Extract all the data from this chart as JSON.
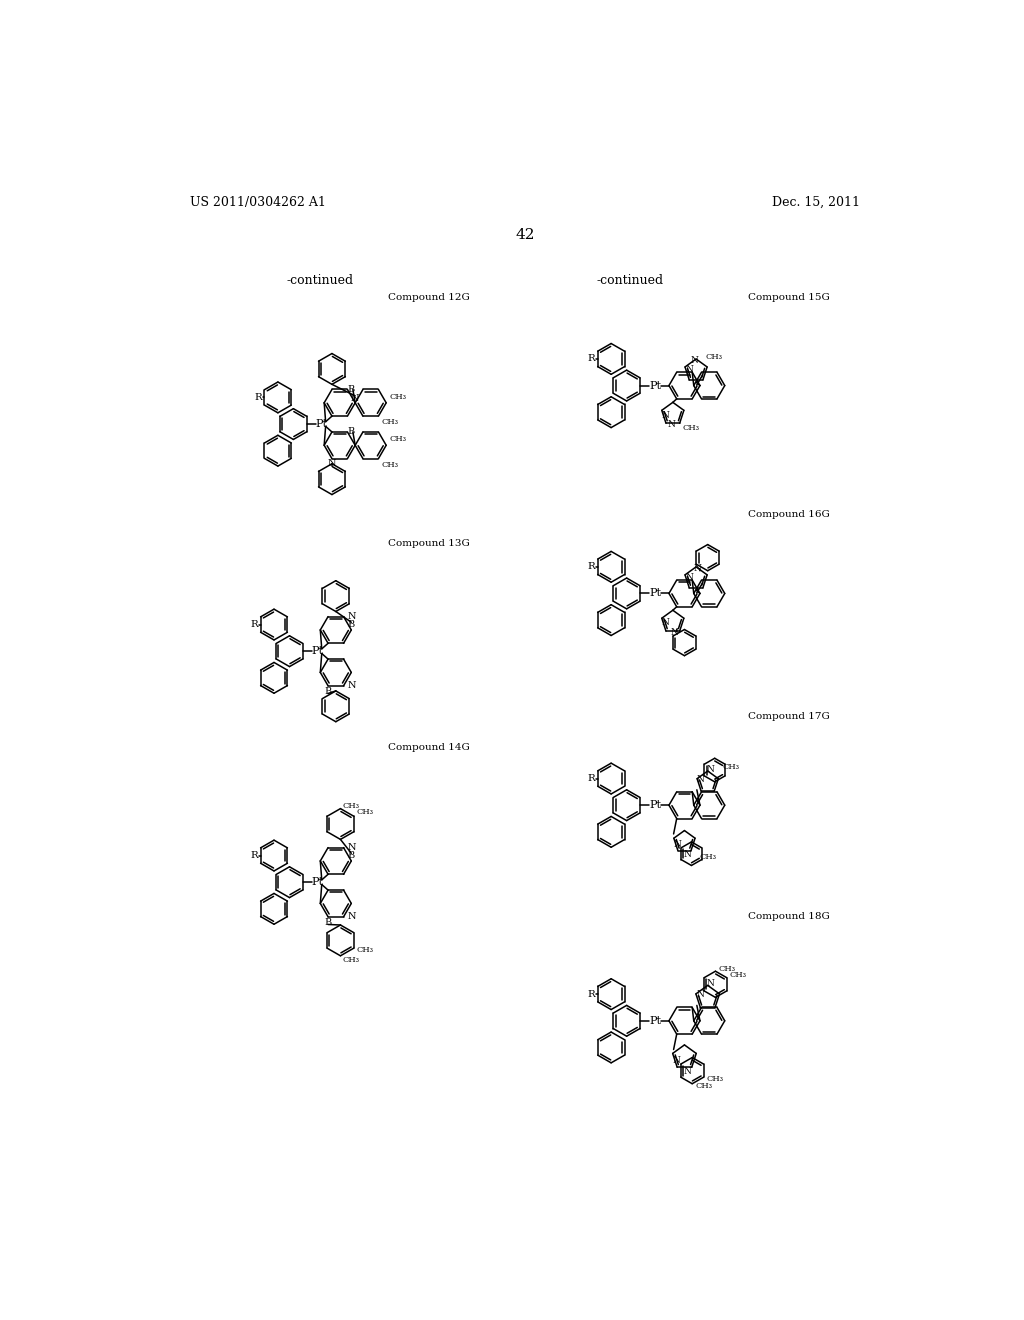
{
  "header_left": "US 2011/0304262 A1",
  "header_right": "Dec. 15, 2011",
  "page_number": "42",
  "bg": "#ffffff",
  "tc": "#000000",
  "continued_left": "-continued",
  "continued_right": "-continued",
  "compound_12g": "Compound 12G",
  "compound_13g": "Compound 13G",
  "compound_14g": "Compound 14G",
  "compound_15g": "Compound 15G",
  "compound_16g": "Compound 16G",
  "compound_17g": "Compound 17G",
  "compound_18g": "Compound 18G",
  "lw": 1.0
}
